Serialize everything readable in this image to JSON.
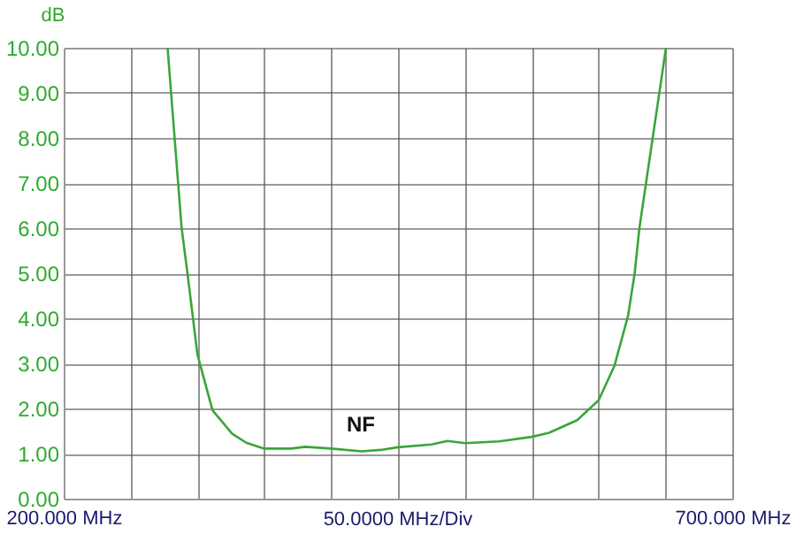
{
  "chart_data": {
    "type": "line",
    "xlabel": "50.0000 MHz/Div",
    "ylabel": "dB",
    "annotations": [
      "NF"
    ],
    "series": [
      {
        "color": "#3aa53a",
        "x": [
          277.7,
          288.2,
          292.4,
          300,
          311.3,
          326,
          336.5,
          350,
          370,
          380.7,
          400,
          422.7,
          437,
          450,
          475,
          487,
          500,
          525.6,
          550,
          563,
          584,
          600,
          611.8,
          622,
          627,
          630.5,
          650.4
        ],
        "values": [
          10,
          6,
          5.04,
          3.2,
          1.96,
          1.44,
          1.24,
          1.11,
          1.11,
          1.15,
          1.11,
          1.05,
          1.08,
          1.14,
          1.2,
          1.28,
          1.23,
          1.27,
          1.37,
          1.46,
          1.74,
          2.18,
          2.94,
          4.05,
          5,
          6,
          10
        ]
      }
    ],
    "xlim": [
      200,
      700
    ],
    "ylim": [
      0,
      10
    ],
    "xticks": [
      {
        "value": 200,
        "label": "200.000 MHz"
      },
      {
        "value": 250,
        "label": null
      },
      {
        "value": 300,
        "label": null
      },
      {
        "value": 350,
        "label": null
      },
      {
        "value": 400,
        "label": null
      },
      {
        "value": 450,
        "label": null
      },
      {
        "value": 500,
        "label": null
      },
      {
        "value": 550,
        "label": null
      },
      {
        "value": 600,
        "label": null
      },
      {
        "value": 650,
        "label": null
      },
      {
        "value": 700,
        "label": "700.000 MHz"
      }
    ],
    "yticks": [
      {
        "value": 0,
        "label": "0.00"
      },
      {
        "value": 1,
        "label": "1.00"
      },
      {
        "value": 2,
        "label": "2.00"
      },
      {
        "value": 3,
        "label": "3.00"
      },
      {
        "value": 4,
        "label": "4.00"
      },
      {
        "value": 5,
        "label": "5.00"
      },
      {
        "value": 6,
        "label": "6.00"
      },
      {
        "value": 7,
        "label": "7.00"
      },
      {
        "value": 8,
        "label": "8.00"
      },
      {
        "value": 9,
        "label": "9.00"
      },
      {
        "value": 10,
        "label": "10.00"
      }
    ],
    "grid": true
  }
}
